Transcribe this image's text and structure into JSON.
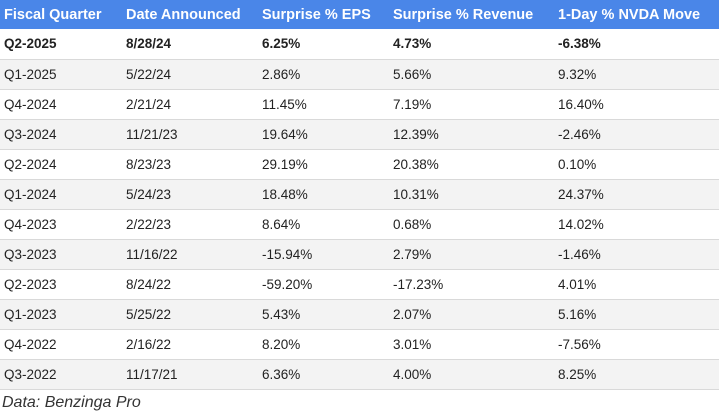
{
  "table": {
    "headers": [
      "Fiscal Quarter",
      "Date Announced",
      "Surprise % EPS",
      "Surprise % Revenue",
      "1-Day % NVDA Move"
    ],
    "rows": [
      {
        "cells": [
          "Q2-2025",
          "8/28/24",
          "6.25%",
          "4.73%",
          "-6.38%"
        ],
        "bold": true
      },
      {
        "cells": [
          "Q1-2025",
          "5/22/24",
          "2.86%",
          "5.66%",
          "9.32%"
        ],
        "bold": false
      },
      {
        "cells": [
          "Q4-2024",
          "2/21/24",
          "11.45%",
          "7.19%",
          "16.40%"
        ],
        "bold": false
      },
      {
        "cells": [
          "Q3-2024",
          "11/21/23",
          "19.64%",
          "12.39%",
          "-2.46%"
        ],
        "bold": false
      },
      {
        "cells": [
          "Q2-2024",
          "8/23/23",
          "29.19%",
          "20.38%",
          "0.10%"
        ],
        "bold": false
      },
      {
        "cells": [
          "Q1-2024",
          "5/24/23",
          "18.48%",
          "10.31%",
          "24.37%"
        ],
        "bold": false
      },
      {
        "cells": [
          "Q4-2023",
          "2/22/23",
          "8.64%",
          "0.68%",
          "14.02%"
        ],
        "bold": false
      },
      {
        "cells": [
          "Q3-2023",
          "11/16/22",
          "-15.94%",
          "2.79%",
          "-1.46%"
        ],
        "bold": false
      },
      {
        "cells": [
          "Q2-2023",
          "8/24/22",
          "-59.20%",
          "-17.23%",
          "4.01%"
        ],
        "bold": false
      },
      {
        "cells": [
          "Q1-2023",
          "5/25/22",
          "5.43%",
          "2.07%",
          "5.16%"
        ],
        "bold": false
      },
      {
        "cells": [
          "Q4-2022",
          "2/16/22",
          "8.20%",
          "3.01%",
          "-7.56%"
        ],
        "bold": false
      },
      {
        "cells": [
          "Q3-2022",
          "11/17/21",
          "6.36%",
          "4.00%",
          "8.25%"
        ],
        "bold": false
      }
    ]
  },
  "source_text": "Data: Benzinga Pro",
  "colors": {
    "header_bg": "#4a86e8",
    "header_text": "#ffffff",
    "stripe": "#f3f3f3"
  }
}
